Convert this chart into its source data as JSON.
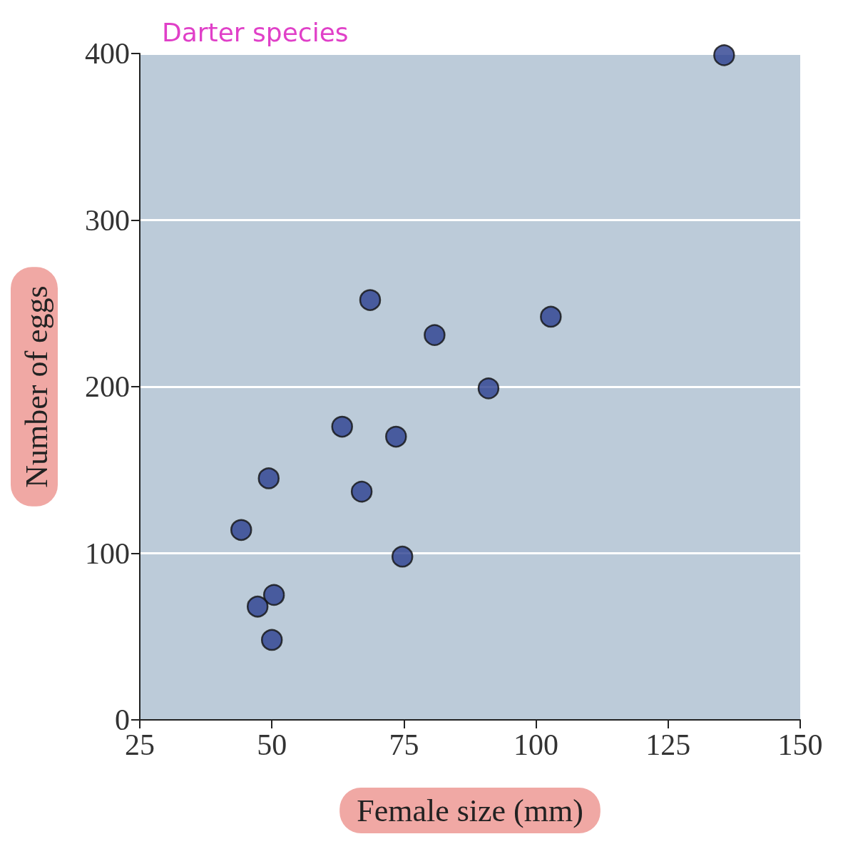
{
  "chart_data": {
    "type": "scatter",
    "title": "Darter species",
    "xlabel": "Female size (mm)",
    "ylabel": "Number of eggs",
    "x": [
      135.6,
      68.6,
      80.8,
      102.8,
      91.0,
      63.3,
      73.5,
      49.4,
      67.0,
      44.2,
      74.7,
      50.4,
      47.3,
      50.0
    ],
    "series": [
      {
        "color": "#2b3f8f",
        "values": [
          399,
          252,
          231,
          242,
          199,
          176,
          170,
          145,
          137,
          114,
          98,
          75,
          68,
          48
        ]
      }
    ],
    "xlim": [
      25,
      150
    ],
    "xticks": [
      25,
      50,
      75,
      100,
      125,
      150
    ],
    "ylim": [
      0,
      400
    ],
    "yticks": [
      0,
      100,
      200,
      300,
      400
    ],
    "grid": "y",
    "marker": "circle"
  }
}
